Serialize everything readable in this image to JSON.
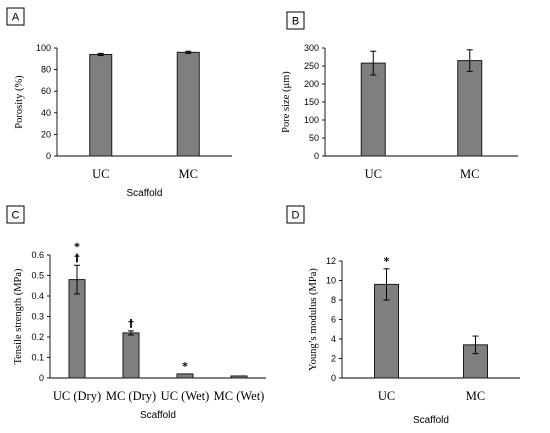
{
  "chart_data": [
    {
      "panel": "A",
      "type": "bar",
      "categories": [
        "UC",
        "MC"
      ],
      "values": [
        94,
        96
      ],
      "errors": [
        1,
        1
      ],
      "annotations": [
        "",
        ""
      ],
      "xlabel": "Scaffold",
      "ylabel": "Porosity (%)",
      "ylim": [
        0,
        100
      ],
      "yticks": [
        "0",
        "20",
        "40",
        "60",
        "80",
        "100"
      ]
    },
    {
      "panel": "B",
      "type": "bar",
      "categories": [
        "UC",
        "MC"
      ],
      "values": [
        258,
        265
      ],
      "errors": [
        33,
        30
      ],
      "annotations": [
        "",
        ""
      ],
      "xlabel": "",
      "ylabel": "Pore size (μm)",
      "ylim": [
        0,
        300
      ],
      "yticks": [
        "0",
        "50",
        "100",
        "150",
        "200",
        "250",
        "300"
      ]
    },
    {
      "panel": "C",
      "type": "bar",
      "categories": [
        "UC (Dry)",
        "MC (Dry)",
        "UC (Wet)",
        "MC (Wet)"
      ],
      "values": [
        0.48,
        0.22,
        0.02,
        0.01
      ],
      "errors": [
        0.07,
        0.01,
        0.0,
        0.0
      ],
      "annotations": [
        "*\n†",
        "†",
        "*",
        ""
      ],
      "xlabel": "Scaffold",
      "ylabel": "Tensile strength (MPa)",
      "ylim": [
        0,
        0.6
      ],
      "yticks": [
        "0",
        "0.1",
        "0.2",
        "0.3",
        "0.4",
        "0.5",
        "0.6"
      ]
    },
    {
      "panel": "D",
      "type": "bar",
      "categories": [
        "UC",
        "MC"
      ],
      "values": [
        9.6,
        3.4
      ],
      "errors": [
        1.6,
        0.9
      ],
      "annotations": [
        "*",
        ""
      ],
      "xlabel": "Scaffold",
      "ylabel": "Young’s modulus (MPa)",
      "ylim": [
        0,
        12
      ],
      "yticks": [
        "0",
        "2",
        "4",
        "6",
        "8",
        "10",
        "12"
      ]
    }
  ]
}
